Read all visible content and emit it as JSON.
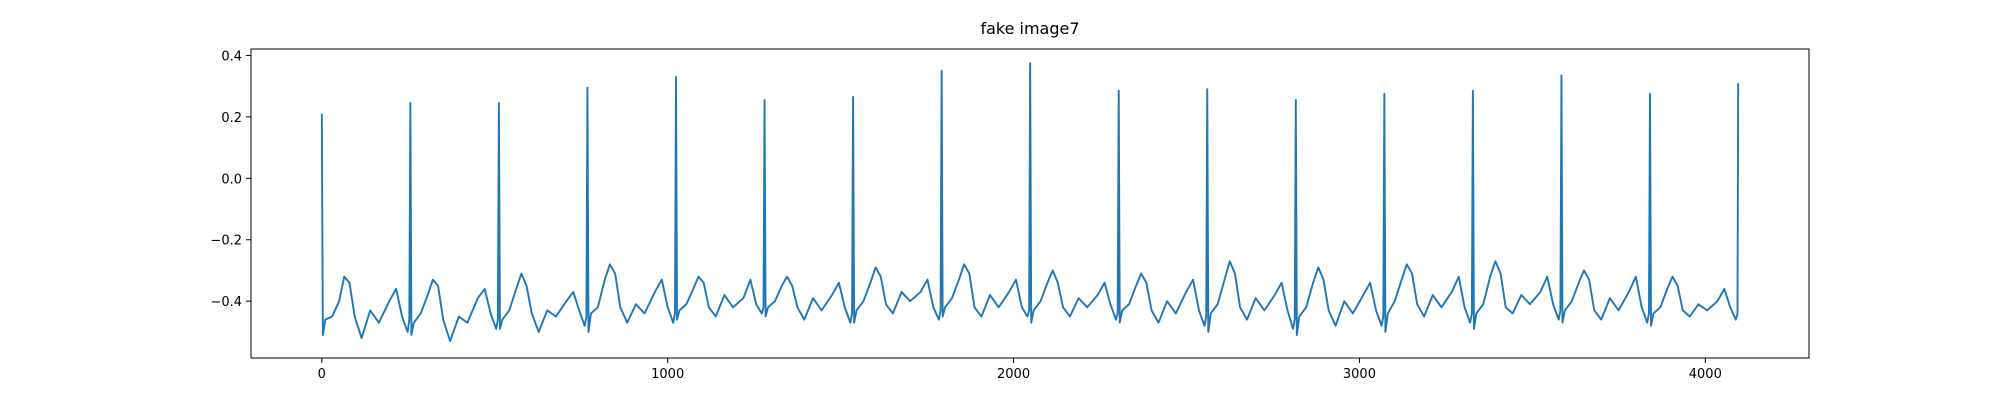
{
  "chart_data": {
    "type": "line",
    "title": "fake image7",
    "color": "#1f77b4",
    "x": [
      0,
      3,
      10,
      30,
      50,
      65,
      80,
      95,
      115,
      140,
      165,
      195,
      215,
      232,
      248,
      253,
      256,
      259,
      266,
      286,
      306,
      321,
      336,
      351,
      371,
      396,
      421,
      451,
      471,
      488,
      504,
      509,
      512,
      515,
      522,
      542,
      562,
      577,
      592,
      607,
      627,
      652,
      677,
      707,
      727,
      744,
      760,
      765,
      768,
      771,
      778,
      798,
      818,
      833,
      848,
      863,
      883,
      908,
      933,
      963,
      983,
      1000,
      1016,
      1021,
      1024,
      1027,
      1034,
      1054,
      1074,
      1089,
      1104,
      1119,
      1139,
      1164,
      1189,
      1219,
      1239,
      1256,
      1272,
      1277,
      1280,
      1283,
      1290,
      1310,
      1330,
      1345,
      1360,
      1375,
      1395,
      1420,
      1445,
      1475,
      1495,
      1512,
      1528,
      1533,
      1536,
      1539,
      1546,
      1566,
      1586,
      1601,
      1616,
      1631,
      1651,
      1676,
      1701,
      1731,
      1751,
      1768,
      1784,
      1789,
      1792,
      1795,
      1802,
      1822,
      1842,
      1857,
      1872,
      1887,
      1907,
      1932,
      1957,
      1987,
      2007,
      2024,
      2040,
      2045,
      2048,
      2051,
      2058,
      2078,
      2098,
      2113,
      2128,
      2143,
      2163,
      2188,
      2213,
      2243,
      2263,
      2280,
      2296,
      2301,
      2304,
      2307,
      2314,
      2334,
      2354,
      2369,
      2384,
      2399,
      2419,
      2444,
      2469,
      2499,
      2519,
      2536,
      2552,
      2557,
      2560,
      2563,
      2570,
      2590,
      2610,
      2625,
      2640,
      2655,
      2675,
      2700,
      2725,
      2755,
      2775,
      2792,
      2808,
      2813,
      2816,
      2819,
      2826,
      2846,
      2866,
      2881,
      2896,
      2911,
      2931,
      2956,
      2981,
      3011,
      3031,
      3048,
      3064,
      3069,
      3072,
      3075,
      3082,
      3102,
      3122,
      3137,
      3152,
      3167,
      3187,
      3212,
      3237,
      3267,
      3287,
      3304,
      3320,
      3325,
      3328,
      3331,
      3338,
      3358,
      3378,
      3393,
      3408,
      3423,
      3443,
      3468,
      3493,
      3523,
      3543,
      3560,
      3576,
      3581,
      3584,
      3587,
      3594,
      3614,
      3634,
      3649,
      3664,
      3679,
      3699,
      3724,
      3749,
      3779,
      3799,
      3816,
      3832,
      3837,
      3840,
      3843,
      3850,
      3870,
      3890,
      3905,
      3920,
      3935,
      3955,
      3980,
      4005,
      4035,
      4055,
      4072,
      4088,
      4093,
      4095
    ],
    "values": [
      0.21,
      -0.51,
      -0.46,
      -0.45,
      -0.4,
      -0.32,
      -0.34,
      -0.45,
      -0.52,
      -0.43,
      -0.47,
      -0.4,
      -0.36,
      -0.45,
      -0.5,
      -0.46,
      0.245,
      -0.51,
      -0.47,
      -0.44,
      -0.38,
      -0.33,
      -0.35,
      -0.46,
      -0.53,
      -0.45,
      -0.47,
      -0.39,
      -0.36,
      -0.44,
      -0.49,
      -0.46,
      0.245,
      -0.49,
      -0.46,
      -0.43,
      -0.36,
      -0.31,
      -0.35,
      -0.44,
      -0.5,
      -0.43,
      -0.45,
      -0.4,
      -0.37,
      -0.43,
      -0.48,
      -0.45,
      0.295,
      -0.5,
      -0.44,
      -0.42,
      -0.33,
      -0.28,
      -0.31,
      -0.42,
      -0.47,
      -0.41,
      -0.44,
      -0.37,
      -0.33,
      -0.42,
      -0.47,
      -0.44,
      0.33,
      -0.46,
      -0.43,
      -0.41,
      -0.36,
      -0.32,
      -0.34,
      -0.42,
      -0.45,
      -0.38,
      -0.42,
      -0.39,
      -0.33,
      -0.41,
      -0.44,
      -0.42,
      0.255,
      -0.45,
      -0.42,
      -0.4,
      -0.35,
      -0.32,
      -0.35,
      -0.42,
      -0.46,
      -0.39,
      -0.43,
      -0.38,
      -0.34,
      -0.42,
      -0.47,
      -0.44,
      0.265,
      -0.47,
      -0.43,
      -0.4,
      -0.34,
      -0.29,
      -0.32,
      -0.41,
      -0.44,
      -0.37,
      -0.4,
      -0.37,
      -0.33,
      -0.42,
      -0.46,
      -0.43,
      0.35,
      -0.45,
      -0.42,
      -0.39,
      -0.33,
      -0.28,
      -0.31,
      -0.42,
      -0.45,
      -0.38,
      -0.42,
      -0.37,
      -0.33,
      -0.42,
      -0.45,
      -0.43,
      0.375,
      -0.47,
      -0.43,
      -0.4,
      -0.34,
      -0.3,
      -0.34,
      -0.42,
      -0.45,
      -0.39,
      -0.42,
      -0.38,
      -0.34,
      -0.41,
      -0.46,
      -0.44,
      0.285,
      -0.47,
      -0.43,
      -0.41,
      -0.35,
      -0.31,
      -0.34,
      -0.43,
      -0.47,
      -0.4,
      -0.44,
      -0.37,
      -0.33,
      -0.43,
      -0.48,
      -0.45,
      0.29,
      -0.5,
      -0.44,
      -0.41,
      -0.33,
      -0.27,
      -0.31,
      -0.42,
      -0.46,
      -0.39,
      -0.43,
      -0.38,
      -0.34,
      -0.43,
      -0.49,
      -0.46,
      0.255,
      -0.51,
      -0.45,
      -0.42,
      -0.34,
      -0.29,
      -0.33,
      -0.43,
      -0.48,
      -0.4,
      -0.44,
      -0.38,
      -0.34,
      -0.43,
      -0.48,
      -0.45,
      0.275,
      -0.5,
      -0.44,
      -0.4,
      -0.33,
      -0.28,
      -0.31,
      -0.41,
      -0.45,
      -0.38,
      -0.42,
      -0.37,
      -0.32,
      -0.42,
      -0.47,
      -0.44,
      0.285,
      -0.49,
      -0.44,
      -0.41,
      -0.32,
      -0.27,
      -0.31,
      -0.42,
      -0.44,
      -0.38,
      -0.41,
      -0.37,
      -0.32,
      -0.41,
      -0.46,
      -0.43,
      0.335,
      -0.47,
      -0.43,
      -0.4,
      -0.34,
      -0.3,
      -0.33,
      -0.43,
      -0.46,
      -0.39,
      -0.43,
      -0.37,
      -0.32,
      -0.42,
      -0.47,
      -0.44,
      0.275,
      -0.48,
      -0.44,
      -0.42,
      -0.36,
      -0.32,
      -0.35,
      -0.43,
      -0.45,
      -0.41,
      -0.43,
      -0.4,
      -0.36,
      -0.42,
      -0.46,
      -0.44,
      0.31
    ],
    "xlim": [
      -204.75,
      4299.75
    ],
    "xticks": [
      0,
      1000,
      2000,
      3000,
      4000
    ],
    "ylim": [
      -0.585,
      0.421
    ],
    "yticks": [
      {
        "value": -0.4,
        "label": "−0.4"
      },
      {
        "value": -0.2,
        "label": "−0.2"
      },
      {
        "value": 0.0,
        "label": "0.0"
      },
      0.2,
      0.4
    ],
    "grid": false
  }
}
